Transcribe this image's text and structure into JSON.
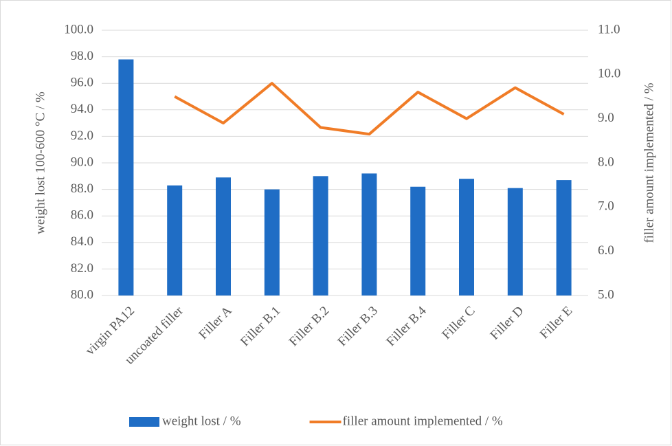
{
  "chart_data": {
    "type": "bar",
    "categories": [
      "virgin PA12",
      "uncoated filler",
      "Filler A",
      "Filler B.1",
      "Filler B.2",
      "Filler B.3",
      "Filler B.4",
      "Filler C",
      "Filler D",
      "Filler E"
    ],
    "series": [
      {
        "name": "weight lost / %",
        "type": "bar",
        "color": "#1f6dc5",
        "values": [
          97.8,
          88.3,
          88.9,
          88.0,
          89.0,
          89.2,
          88.2,
          88.8,
          88.1,
          88.7
        ]
      },
      {
        "name": "filler amount implemented / %",
        "type": "line",
        "axis": "y2",
        "color": "#f07c27",
        "values": [
          null,
          9.5,
          8.9,
          9.8,
          8.8,
          8.65,
          9.6,
          9.0,
          9.7,
          9.1
        ]
      }
    ],
    "ylabel": "weight lost 100-600 °C / %",
    "y2label": "filler amount implemented / %",
    "ylim": [
      80,
      100
    ],
    "yticks": [
      {
        "value": 80,
        "label": "80.0"
      },
      {
        "value": 82,
        "label": "82.0"
      },
      {
        "value": 84,
        "label": "84.0"
      },
      {
        "value": 86,
        "label": "86.0"
      },
      {
        "value": 88,
        "label": "88.0"
      },
      {
        "value": 90,
        "label": "90.0"
      },
      {
        "value": 92,
        "label": "92.0"
      },
      {
        "value": 94,
        "label": "94.0"
      },
      {
        "value": 96,
        "label": "96.0"
      },
      {
        "value": 98,
        "label": "98.0"
      },
      {
        "value": 100,
        "label": "100.0"
      }
    ],
    "y2lim": [
      5,
      11
    ],
    "y2ticks": [
      {
        "value": 5,
        "label": "5.0"
      },
      {
        "value": 6,
        "label": "6.0"
      },
      {
        "value": 7,
        "label": "7.0"
      },
      {
        "value": 8,
        "label": "8.0"
      },
      {
        "value": 9,
        "label": "9.0"
      },
      {
        "value": 10,
        "label": "10.0"
      },
      {
        "value": 11,
        "label": "11.0"
      }
    ],
    "grid": true,
    "legend": "bottom"
  }
}
